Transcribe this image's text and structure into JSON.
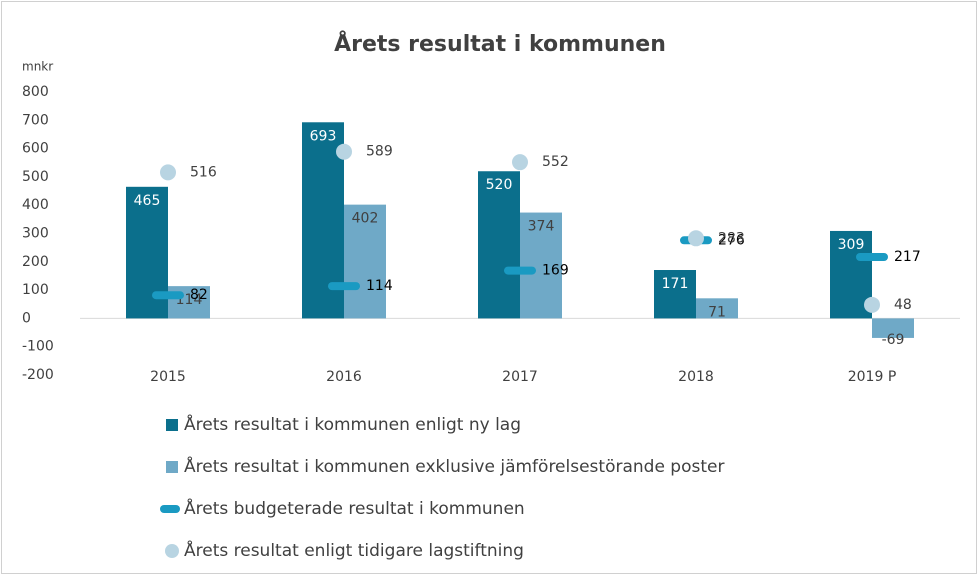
{
  "chart_data": {
    "type": "bar",
    "title": "Årets resultat i kommunen",
    "y_axis_label": "mnkr",
    "categories": [
      "2015",
      "2016",
      "2017",
      "2018",
      "2019 P"
    ],
    "series": [
      {
        "name": "Årets resultat i kommunen enligt ny lag",
        "color": "#0b6f8c",
        "kind": "bar",
        "values": [
          465,
          693,
          520,
          171,
          309
        ]
      },
      {
        "name": "Årets resultat i kommunen exklusive jämförelsestörande poster",
        "color": "#6fa9c7",
        "kind": "bar",
        "values": [
          114,
          402,
          374,
          71,
          -69
        ]
      },
      {
        "name": "Årets budgeterade resultat i kommunen",
        "color": "#1a9ac2",
        "kind": "dash",
        "values": [
          82,
          114,
          169,
          276,
          217
        ]
      },
      {
        "name": "Årets resultat enligt tidigare lagstiftning",
        "color": "#b8d4e2",
        "kind": "dot",
        "values": [
          516,
          589,
          552,
          283,
          48
        ]
      }
    ],
    "ylim": [
      -200,
      800
    ],
    "yticks": [
      -200,
      -100,
      0,
      100,
      200,
      300,
      400,
      500,
      600,
      700,
      800
    ]
  }
}
